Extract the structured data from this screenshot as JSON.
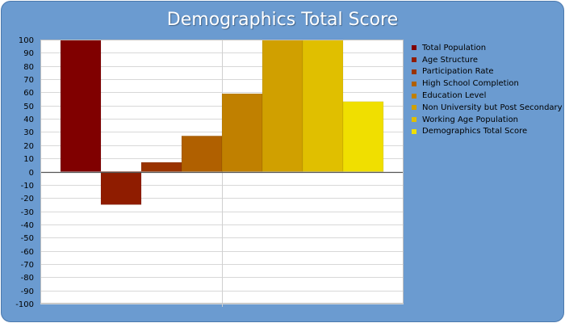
{
  "chart_data": {
    "type": "bar",
    "title": "Demographics Total Score",
    "xlabel": "",
    "ylabel": "",
    "ylim": [
      -100,
      100
    ],
    "ytick_step": 10,
    "grid": true,
    "legend_position": "right",
    "series": [
      {
        "name": "Total Population",
        "value": 100,
        "color": "#800000"
      },
      {
        "name": "Age Structure",
        "value": -25,
        "color": "#8f1c00"
      },
      {
        "name": "Participation Rate",
        "value": 7,
        "color": "#993300"
      },
      {
        "name": "High School Completion",
        "value": 27,
        "color": "#b06000"
      },
      {
        "name": "Education Level",
        "value": 59,
        "color": "#c08000"
      },
      {
        "name": "Non University but Post Secondary",
        "value": 100,
        "color": "#d0a000"
      },
      {
        "name": "Working Age Population",
        "value": 100,
        "color": "#e0bf00"
      },
      {
        "name": "Demographics Total Score",
        "value": 53,
        "color": "#f0df00"
      }
    ]
  }
}
